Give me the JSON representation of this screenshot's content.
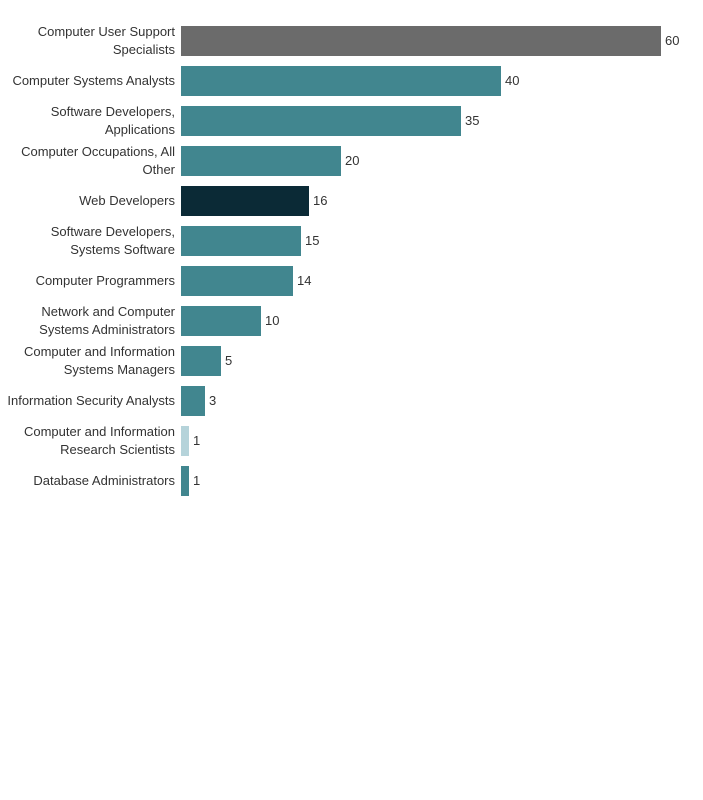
{
  "chart_data": {
    "type": "bar",
    "orientation": "horizontal",
    "categories": [
      "Computer User Support Specialists",
      "Computer Systems Analysts",
      "Software Developers, Applications",
      "Computer Occupations, All Other",
      "Web Developers",
      "Software Developers, Systems Software",
      "Computer Programmers",
      "Network and Computer Systems Administrators",
      "Computer and Information Systems Managers",
      "Information Security Analysts",
      "Computer and Information Research Scientists",
      "Database Administrators"
    ],
    "values": [
      60,
      40,
      35,
      20,
      16,
      15,
      14,
      10,
      5,
      3,
      1,
      1
    ],
    "colors": [
      "#6b6b6b",
      "#41868f",
      "#41868f",
      "#41868f",
      "#0b2a36",
      "#41868f",
      "#41868f",
      "#41868f",
      "#41868f",
      "#41868f",
      "#b5d3da",
      "#41868f"
    ]
  }
}
